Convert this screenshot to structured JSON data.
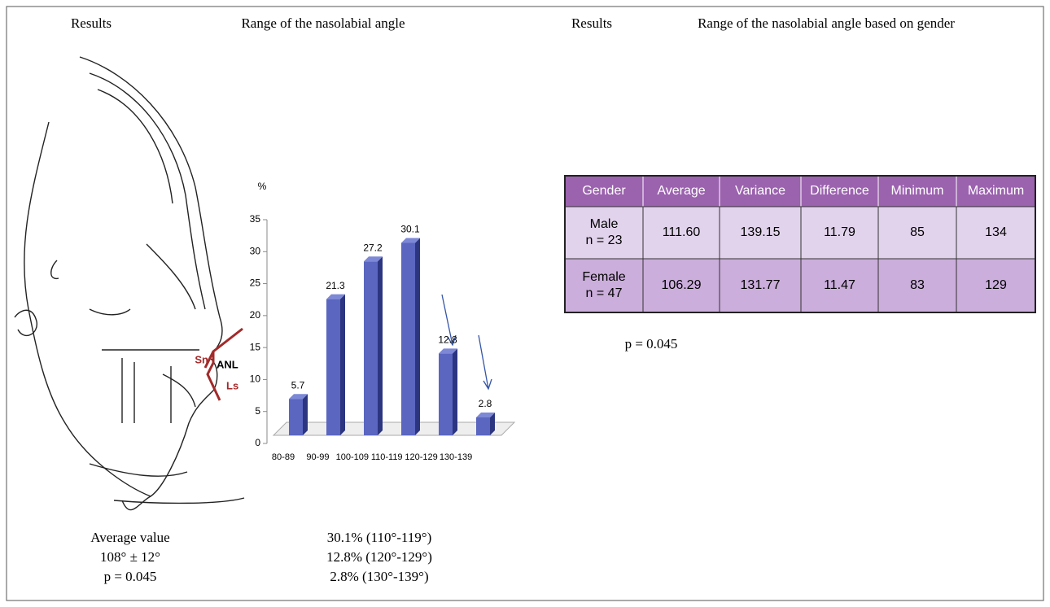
{
  "left_header": {
    "results": "Results",
    "title": "Range of the nasolabial angle"
  },
  "right_header": {
    "results": "Results",
    "title": "Range of the nasolabial angle based on gender"
  },
  "drawing_labels": {
    "sn": "Sn",
    "anl": "ANL",
    "ls": "Ls"
  },
  "summary": {
    "lines": [
      "Average value",
      "108° ± 12°",
      "p = 0.045"
    ]
  },
  "ranges": {
    "lines": [
      "30.1% (110°-119°)",
      "12.8% (120°-129°)",
      "2.8% (130°-139°)"
    ]
  },
  "chart_data": {
    "type": "bar",
    "y_label": "%",
    "categories": [
      "80-89",
      "90-99",
      "100-109",
      "110-119",
      "120-129",
      "130-139"
    ],
    "values": [
      5.7,
      21.3,
      27.2,
      30.1,
      12.8,
      2.8
    ],
    "color": "#5a66c0",
    "ylim": [
      0,
      35
    ],
    "yticks": [
      0,
      5,
      10,
      15,
      20,
      25,
      30,
      35
    ]
  },
  "table": {
    "columns": [
      "Gender",
      "Average",
      "Variance",
      "Difference",
      "Minimum",
      "Maximum"
    ],
    "rows": [
      [
        [
          "Male",
          "n = 23"
        ],
        "111.60",
        "139.15",
        "11.79",
        "85",
        "134"
      ],
      [
        [
          "Female",
          "n = 47"
        ],
        "106.29",
        "131.77",
        "11.47",
        "83",
        "129"
      ]
    ]
  },
  "table_note": "p = 0.045"
}
